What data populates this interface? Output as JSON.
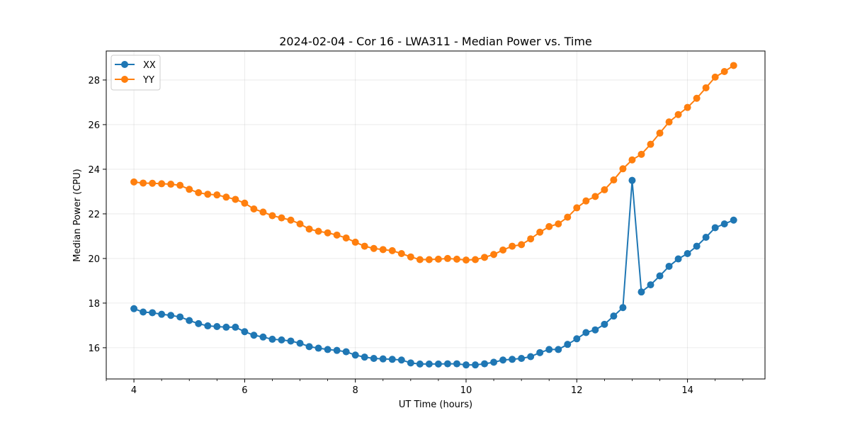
{
  "chart_data": {
    "type": "line",
    "title": "2024-02-04 - Cor 16 - LWA311 - Median Power vs. Time",
    "xlabel": "UT Time (hours)",
    "ylabel": "Median Power (CPU)",
    "xlim": [
      3.5,
      15.4
    ],
    "ylim": [
      14.6,
      29.3
    ],
    "xticks": [
      4,
      6,
      8,
      10,
      12,
      14
    ],
    "xtick_labels": [
      "4",
      "6",
      "8",
      "10",
      "12",
      "14"
    ],
    "yticks": [
      16,
      18,
      20,
      22,
      24,
      26,
      28
    ],
    "ytick_labels": [
      "16",
      "18",
      "20",
      "22",
      "24",
      "26",
      "28"
    ],
    "grid": true,
    "legend_position": "top-left",
    "x": [
      4.0,
      4.1667,
      4.3333,
      4.5,
      4.6667,
      4.8333,
      5.0,
      5.1667,
      5.3333,
      5.5,
      5.6667,
      5.8333,
      6.0,
      6.1667,
      6.3333,
      6.5,
      6.6667,
      6.8333,
      7.0,
      7.1667,
      7.3333,
      7.5,
      7.6667,
      7.8333,
      8.0,
      8.1667,
      8.3333,
      8.5,
      8.6667,
      8.8333,
      9.0,
      9.1667,
      9.3333,
      9.5,
      9.6667,
      9.8333,
      10.0,
      10.1667,
      10.3333,
      10.5,
      10.6667,
      10.8333,
      11.0,
      11.1667,
      11.3333,
      11.5,
      11.6667,
      11.8333,
      12.0,
      12.1667,
      12.3333,
      12.5,
      12.6667,
      12.8333,
      13.0,
      13.1667,
      13.3333,
      13.5,
      13.6667,
      13.8333,
      14.0,
      14.1667,
      14.3333,
      14.5,
      14.6667,
      14.8333
    ],
    "series": [
      {
        "name": "XX",
        "color": "#1f77b4",
        "values": [
          17.75,
          17.6,
          17.57,
          17.5,
          17.45,
          17.38,
          17.22,
          17.08,
          16.98,
          16.95,
          16.92,
          16.92,
          16.72,
          16.56,
          16.48,
          16.38,
          16.35,
          16.3,
          16.2,
          16.05,
          15.98,
          15.92,
          15.88,
          15.82,
          15.67,
          15.58,
          15.52,
          15.5,
          15.48,
          15.45,
          15.32,
          15.27,
          15.27,
          15.27,
          15.28,
          15.28,
          15.23,
          15.23,
          15.28,
          15.35,
          15.45,
          15.48,
          15.52,
          15.6,
          15.78,
          15.92,
          15.92,
          16.15,
          16.4,
          16.68,
          16.8,
          17.05,
          17.42,
          17.8,
          23.5,
          18.5,
          18.82,
          19.22,
          19.65,
          19.98,
          20.22,
          20.55,
          20.95,
          21.38,
          21.55,
          21.72
        ]
      },
      {
        "name": "YY",
        "color": "#ff7f0e",
        "values": [
          23.43,
          23.38,
          23.37,
          23.35,
          23.33,
          23.28,
          23.1,
          22.95,
          22.88,
          22.85,
          22.75,
          22.65,
          22.48,
          22.22,
          22.08,
          21.92,
          21.82,
          21.72,
          21.55,
          21.32,
          21.22,
          21.15,
          21.05,
          20.92,
          20.73,
          20.55,
          20.45,
          20.4,
          20.35,
          20.22,
          20.07,
          19.95,
          19.95,
          19.97,
          20.0,
          19.97,
          19.93,
          19.95,
          20.05,
          20.18,
          20.38,
          20.55,
          20.62,
          20.88,
          21.18,
          21.43,
          21.55,
          21.85,
          22.27,
          22.58,
          22.78,
          23.08,
          23.52,
          24.02,
          24.42,
          24.67,
          25.12,
          25.62,
          26.12,
          26.45,
          26.77,
          27.18,
          27.65,
          28.13,
          28.38,
          28.65
        ]
      }
    ]
  }
}
